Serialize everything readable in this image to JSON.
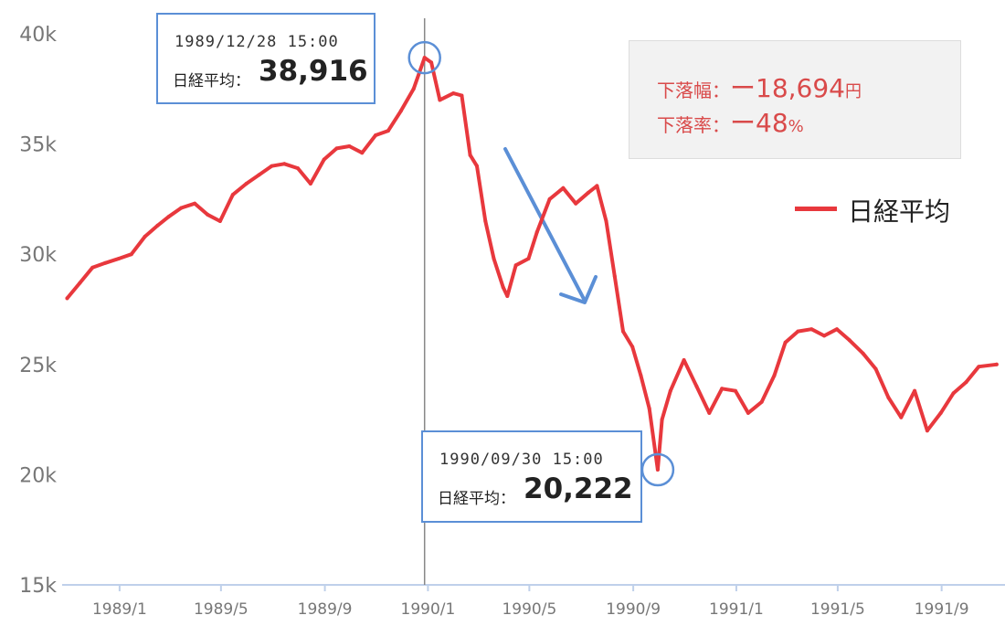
{
  "colors": {
    "series": "#e8383d",
    "accent": "#5b8fd6",
    "drop_text": "#d94a4a",
    "axis_text": "#777777"
  },
  "chart_data": {
    "type": "line",
    "title": "",
    "xlabel": "",
    "ylabel": "",
    "x_ticks": [
      "1989/1",
      "1989/5",
      "1989/9",
      "1990/1",
      "1990/5",
      "1990/9",
      "1991/1",
      "1991/5",
      "1991/9"
    ],
    "y_ticks": [
      "15k",
      "20k",
      "25k",
      "30k",
      "35k",
      "40k"
    ],
    "ylim": [
      15000,
      40000
    ],
    "xlim": [
      "1988/10/25",
      "1991/11/15"
    ],
    "legend_position": "right",
    "grid": false,
    "series": [
      {
        "name": "日経平均",
        "points": [
          [
            "1988/10/31",
            28000
          ],
          [
            "1988/11/15",
            28700
          ],
          [
            "1988/11/30",
            29400
          ],
          [
            "1988/12/15",
            29600
          ],
          [
            "1988/12/31",
            29800
          ],
          [
            "1989/01/15",
            30000
          ],
          [
            "1989/01/31",
            30800
          ],
          [
            "1989/02/15",
            31300
          ],
          [
            "1989/02/28",
            31700
          ],
          [
            "1989/03/15",
            32100
          ],
          [
            "1989/03/31",
            32300
          ],
          [
            "1989/04/15",
            31800
          ],
          [
            "1989/04/30",
            31500
          ],
          [
            "1989/05/15",
            32700
          ],
          [
            "1989/05/31",
            33200
          ],
          [
            "1989/06/15",
            33600
          ],
          [
            "1989/06/30",
            34000
          ],
          [
            "1989/07/15",
            34100
          ],
          [
            "1989/07/31",
            33900
          ],
          [
            "1989/08/15",
            33200
          ],
          [
            "1989/08/31",
            34300
          ],
          [
            "1989/09/15",
            34800
          ],
          [
            "1989/09/30",
            34900
          ],
          [
            "1989/10/15",
            34600
          ],
          [
            "1989/10/31",
            35400
          ],
          [
            "1989/11/15",
            35600
          ],
          [
            "1989/11/30",
            36500
          ],
          [
            "1989/12/15",
            37500
          ],
          [
            "1989/12/28",
            38916
          ],
          [
            "1990/01/05",
            38700
          ],
          [
            "1990/01/15",
            37000
          ],
          [
            "1990/01/31",
            37300
          ],
          [
            "1990/02/10",
            37200
          ],
          [
            "1990/02/20",
            34500
          ],
          [
            "1990/02/28",
            34000
          ],
          [
            "1990/03/10",
            31500
          ],
          [
            "1990/03/20",
            29800
          ],
          [
            "1990/03/31",
            28500
          ],
          [
            "1990/04/05",
            28100
          ],
          [
            "1990/04/15",
            29500
          ],
          [
            "1990/04/30",
            29800
          ],
          [
            "1990/05/10",
            31000
          ],
          [
            "1990/05/25",
            32500
          ],
          [
            "1990/06/10",
            33000
          ],
          [
            "1990/06/25",
            32300
          ],
          [
            "1990/07/10",
            32800
          ],
          [
            "1990/07/20",
            33100
          ],
          [
            "1990/07/31",
            31500
          ],
          [
            "1990/08/10",
            29000
          ],
          [
            "1990/08/20",
            26500
          ],
          [
            "1990/08/31",
            25800
          ],
          [
            "1990/09/10",
            24500
          ],
          [
            "1990/09/20",
            23000
          ],
          [
            "1990/09/30",
            20222
          ],
          [
            "1990/10/05",
            22500
          ],
          [
            "1990/10/15",
            23800
          ],
          [
            "1990/10/31",
            25200
          ],
          [
            "1990/11/15",
            24000
          ],
          [
            "1990/11/30",
            22800
          ],
          [
            "1990/12/15",
            23900
          ],
          [
            "1990/12/31",
            23800
          ],
          [
            "1991/01/15",
            22800
          ],
          [
            "1991/01/31",
            23300
          ],
          [
            "1991/02/15",
            24500
          ],
          [
            "1991/02/28",
            26000
          ],
          [
            "1991/03/15",
            26500
          ],
          [
            "1991/03/31",
            26600
          ],
          [
            "1991/04/15",
            26300
          ],
          [
            "1991/04/30",
            26600
          ],
          [
            "1991/05/15",
            26100
          ],
          [
            "1991/05/31",
            25500
          ],
          [
            "1991/06/15",
            24800
          ],
          [
            "1991/06/30",
            23500
          ],
          [
            "1991/07/15",
            22600
          ],
          [
            "1991/07/31",
            23800
          ],
          [
            "1991/08/15",
            22000
          ],
          [
            "1991/08/31",
            22800
          ],
          [
            "1991/09/15",
            23700
          ],
          [
            "1991/09/30",
            24200
          ],
          [
            "1991/10/15",
            24900
          ],
          [
            "1991/11/05",
            25000
          ]
        ]
      }
    ],
    "markers": [
      {
        "date": "1989/12/28",
        "value": 38916
      },
      {
        "date": "1990/09/30",
        "value": 20222
      }
    ],
    "vertical_line": "1989/12/28"
  },
  "callouts": {
    "peak": {
      "timestamp": "1989/12/28 15:00",
      "label": "日経平均：",
      "value": "38,916"
    },
    "trough": {
      "timestamp": "1990/09/30 15:00",
      "label": "日経平均：",
      "value": "20,222"
    }
  },
  "drop": {
    "amount_label": "下落幅：",
    "amount_value": "ー18,694",
    "amount_unit": "円",
    "rate_label": "下落率：",
    "rate_value": "ー48",
    "rate_unit": "%"
  },
  "legend": {
    "label": "日経平均"
  }
}
